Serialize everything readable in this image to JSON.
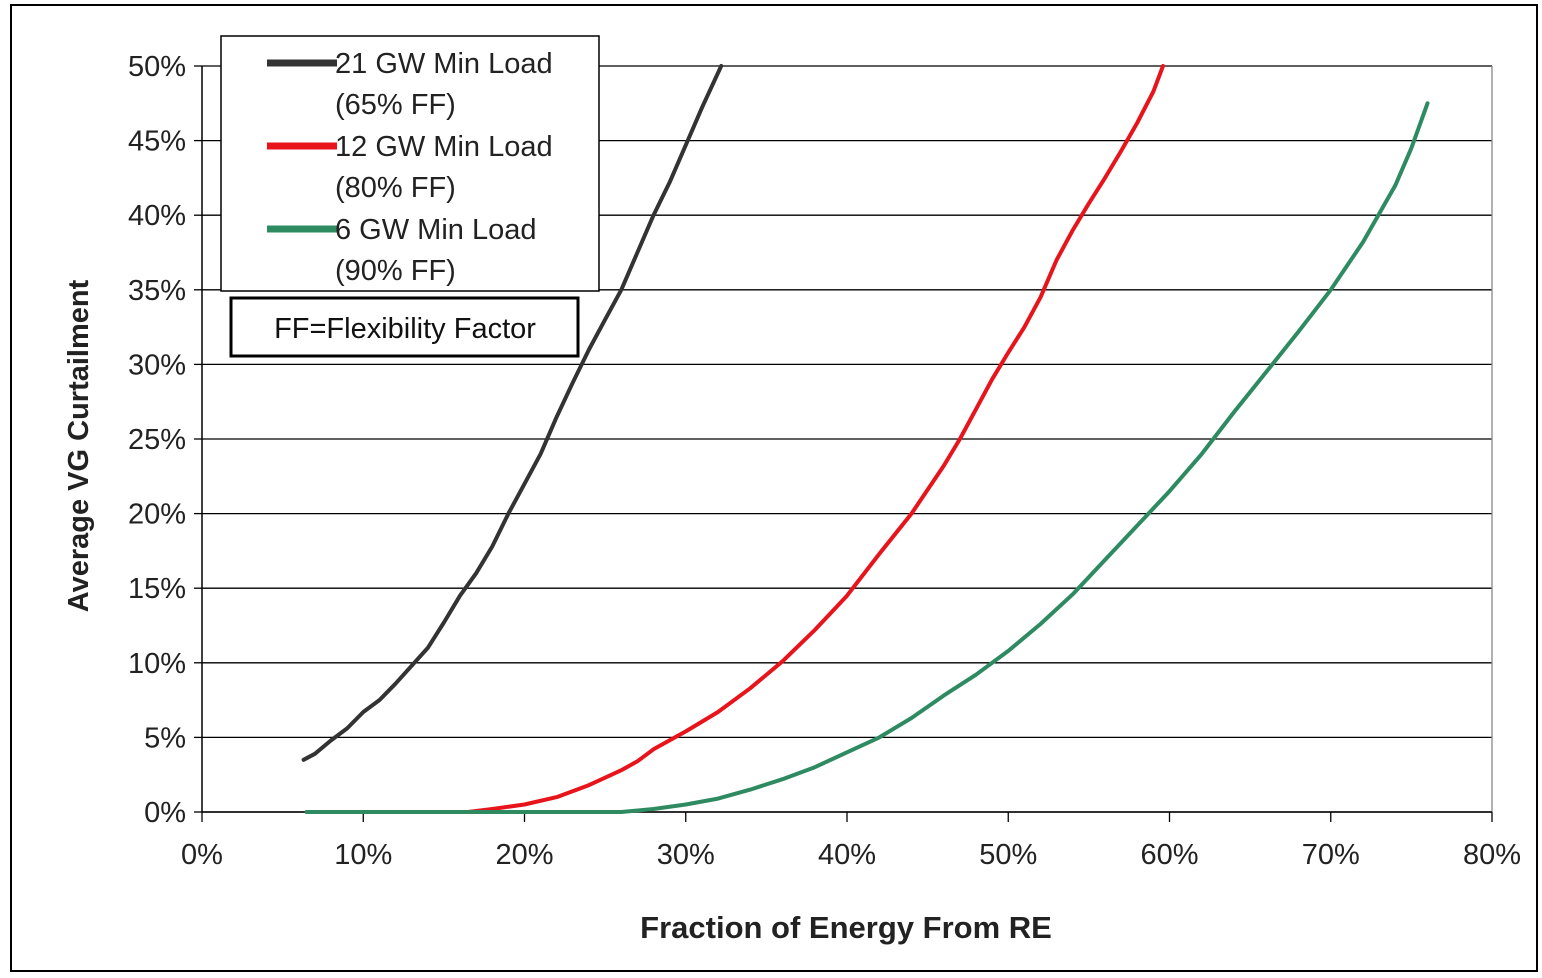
{
  "chart_data": {
    "type": "line",
    "xlabel": "Fraction of Energy From RE",
    "ylabel": "Average VG Curtailment",
    "xlim": [
      0,
      80
    ],
    "ylim": [
      0,
      50
    ],
    "x_ticks": [
      "0%",
      "10%",
      "20%",
      "30%",
      "40%",
      "50%",
      "60%",
      "70%",
      "80%"
    ],
    "y_ticks": [
      "0%",
      "5%",
      "10%",
      "15%",
      "20%",
      "25%",
      "30%",
      "35%",
      "40%",
      "45%",
      "50%"
    ],
    "grid": "horizontal",
    "legend_position": "top-left",
    "annotation": "FF=Flexibility Factor",
    "series": [
      {
        "name": "21 GW Min Load",
        "name_line2": "(65% FF)",
        "color": "#333333",
        "points": [
          [
            6.3,
            3.5
          ],
          [
            7,
            3.9
          ],
          [
            8,
            4.8
          ],
          [
            9,
            5.6
          ],
          [
            10,
            6.7
          ],
          [
            11,
            7.5
          ],
          [
            12,
            8.6
          ],
          [
            13,
            9.8
          ],
          [
            14,
            11
          ],
          [
            15,
            12.7
          ],
          [
            16,
            14.5
          ],
          [
            17,
            16
          ],
          [
            18,
            17.8
          ],
          [
            19,
            20
          ],
          [
            20,
            22
          ],
          [
            21,
            24
          ],
          [
            22,
            26.5
          ],
          [
            23,
            28.8
          ],
          [
            24,
            31
          ],
          [
            25,
            33
          ],
          [
            26,
            35
          ],
          [
            27,
            37.5
          ],
          [
            28,
            40
          ],
          [
            29,
            42.2
          ],
          [
            30,
            44.7
          ],
          [
            31,
            47.2
          ],
          [
            32.2,
            50
          ]
        ]
      },
      {
        "name": "12 GW Min Load",
        "name_line2": "(80% FF)",
        "color": "#e8141b",
        "points": [
          [
            6.5,
            0
          ],
          [
            10,
            0
          ],
          [
            14,
            0
          ],
          [
            16.5,
            0
          ],
          [
            18,
            0.2
          ],
          [
            20,
            0.5
          ],
          [
            22,
            1
          ],
          [
            24,
            1.8
          ],
          [
            25,
            2.3
          ],
          [
            26,
            2.8
          ],
          [
            27,
            3.4
          ],
          [
            28,
            4.2
          ],
          [
            30,
            5.4
          ],
          [
            32,
            6.7
          ],
          [
            34,
            8.3
          ],
          [
            36,
            10.1
          ],
          [
            38,
            12.2
          ],
          [
            40,
            14.5
          ],
          [
            42,
            17.3
          ],
          [
            44,
            20
          ],
          [
            46,
            23.2
          ],
          [
            47,
            25
          ],
          [
            48,
            27
          ],
          [
            49,
            29
          ],
          [
            50,
            30.8
          ],
          [
            51,
            32.5
          ],
          [
            52,
            34.5
          ],
          [
            53,
            37
          ],
          [
            54,
            39
          ],
          [
            55,
            40.8
          ],
          [
            56,
            42.5
          ],
          [
            57,
            44.3
          ],
          [
            58,
            46.2
          ],
          [
            59,
            48.3
          ],
          [
            59.6,
            50
          ]
        ]
      },
      {
        "name": "6 GW Min Load",
        "name_line2": "(90% FF)",
        "color": "#2e8b61",
        "points": [
          [
            6.5,
            0
          ],
          [
            15,
            0
          ],
          [
            20,
            0
          ],
          [
            26,
            0
          ],
          [
            28,
            0.2
          ],
          [
            30,
            0.5
          ],
          [
            32,
            0.9
          ],
          [
            34,
            1.5
          ],
          [
            36,
            2.2
          ],
          [
            38,
            3
          ],
          [
            40,
            4
          ],
          [
            42,
            5
          ],
          [
            44,
            6.3
          ],
          [
            46,
            7.8
          ],
          [
            48,
            9.2
          ],
          [
            50,
            10.8
          ],
          [
            52,
            12.6
          ],
          [
            54,
            14.6
          ],
          [
            56,
            16.9
          ],
          [
            58,
            19.2
          ],
          [
            60,
            21.5
          ],
          [
            62,
            24
          ],
          [
            64,
            26.8
          ],
          [
            66,
            29.5
          ],
          [
            68,
            32.2
          ],
          [
            70,
            35
          ],
          [
            72,
            38.2
          ],
          [
            74,
            42
          ],
          [
            75,
            44.5
          ],
          [
            76,
            47.5
          ]
        ]
      }
    ]
  }
}
